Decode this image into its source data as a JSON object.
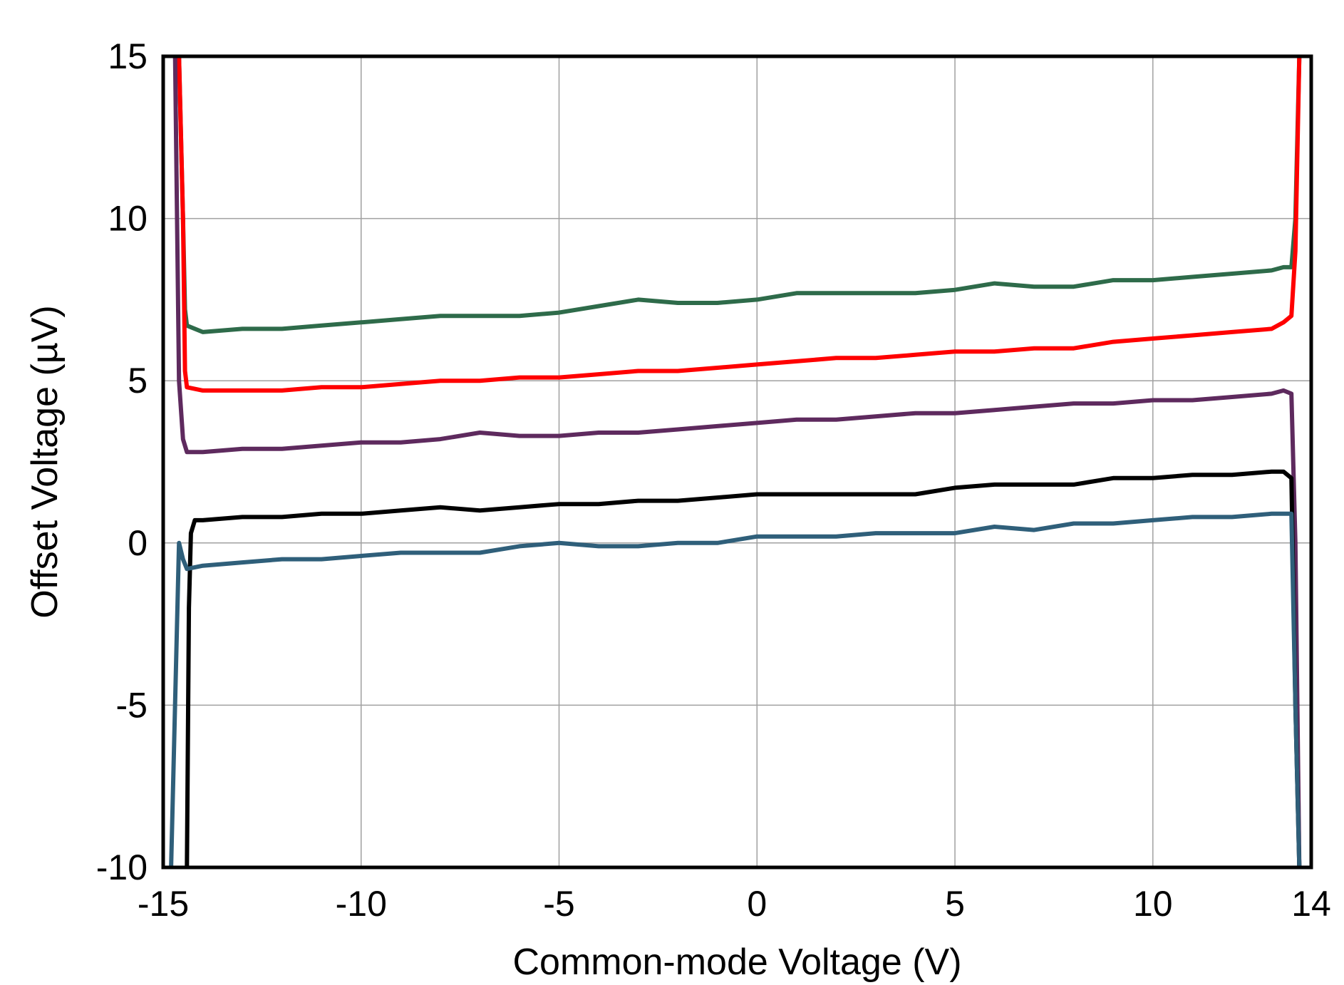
{
  "chart_data": {
    "type": "line",
    "title": "",
    "xlabel": "Common-mode Voltage (V)",
    "ylabel": "Offset Voltage (µV)",
    "xlim": [
      -15,
      14
    ],
    "ylim": [
      -10,
      15
    ],
    "xticks": [
      -15,
      -10,
      -5,
      0,
      5,
      10,
      14
    ],
    "yticks": [
      15,
      10,
      5,
      0,
      -5,
      -10
    ],
    "xtick_labels": [
      "-15",
      "-10",
      "-5",
      "0",
      "5",
      "10",
      "14"
    ],
    "ytick_labels": [
      "15",
      "10",
      "5",
      "0",
      "-5",
      "-10"
    ],
    "grid": true,
    "legend": "none",
    "series": [
      {
        "color": "#2e6b4a",
        "x": [
          -14.6,
          -14.5,
          -14.45,
          -14.4,
          -14,
          -13,
          -12,
          -11,
          -10,
          -9,
          -8,
          -7,
          -6,
          -5,
          -4,
          -3,
          -2,
          -1,
          0,
          1,
          2,
          3,
          4,
          5,
          6,
          7,
          8,
          9,
          10,
          11,
          12,
          13,
          13.3,
          13.5,
          13.6,
          13.7
        ],
        "y": [
          15,
          10,
          7.2,
          6.7,
          6.5,
          6.6,
          6.6,
          6.7,
          6.8,
          6.9,
          7.0,
          7.0,
          7.0,
          7.1,
          7.3,
          7.5,
          7.4,
          7.4,
          7.5,
          7.7,
          7.7,
          7.7,
          7.7,
          7.8,
          8.0,
          7.9,
          7.9,
          8.1,
          8.1,
          8.2,
          8.3,
          8.4,
          8.5,
          8.5,
          10,
          15
        ]
      },
      {
        "color": "#ff0000",
        "x": [
          -14.6,
          -14.5,
          -14.45,
          -14.4,
          -14,
          -13,
          -12,
          -11,
          -10,
          -9,
          -8,
          -7,
          -6,
          -5,
          -4,
          -3,
          -2,
          -1,
          0,
          1,
          2,
          3,
          4,
          5,
          6,
          7,
          8,
          9,
          10,
          11,
          12,
          13,
          13.3,
          13.5,
          13.6,
          13.7
        ],
        "y": [
          15,
          10,
          5.3,
          4.8,
          4.7,
          4.7,
          4.7,
          4.8,
          4.8,
          4.9,
          5.0,
          5.0,
          5.1,
          5.1,
          5.2,
          5.3,
          5.3,
          5.4,
          5.5,
          5.6,
          5.7,
          5.7,
          5.8,
          5.9,
          5.9,
          6.0,
          6.0,
          6.2,
          6.3,
          6.4,
          6.5,
          6.6,
          6.8,
          7.0,
          9,
          15
        ]
      },
      {
        "color": "#5e2a5e",
        "x": [
          -14.7,
          -14.6,
          -14.5,
          -14.4,
          -14,
          -13,
          -12,
          -11,
          -10,
          -9,
          -8,
          -7,
          -6,
          -5,
          -4,
          -3,
          -2,
          -1,
          0,
          1,
          2,
          3,
          4,
          5,
          6,
          7,
          8,
          9,
          10,
          11,
          12,
          13,
          13.3,
          13.5,
          13.6,
          13.7
        ],
        "y": [
          15,
          5,
          3.2,
          2.8,
          2.8,
          2.9,
          2.9,
          3.0,
          3.1,
          3.1,
          3.2,
          3.4,
          3.3,
          3.3,
          3.4,
          3.4,
          3.5,
          3.6,
          3.7,
          3.8,
          3.8,
          3.9,
          4.0,
          4.0,
          4.1,
          4.2,
          4.3,
          4.3,
          4.4,
          4.4,
          4.5,
          4.6,
          4.7,
          4.6,
          0,
          -10
        ]
      },
      {
        "color": "#000000",
        "x": [
          -14.4,
          -14.35,
          -14.3,
          -14.2,
          -14,
          -13,
          -12,
          -11,
          -10,
          -9,
          -8,
          -7,
          -6,
          -5,
          -4,
          -3,
          -2,
          -1,
          0,
          1,
          2,
          3,
          4,
          5,
          6,
          7,
          8,
          9,
          10,
          11,
          12,
          13,
          13.3,
          13.5,
          13.6,
          13.7
        ],
        "y": [
          -10,
          -2,
          0.3,
          0.7,
          0.7,
          0.8,
          0.8,
          0.9,
          0.9,
          1.0,
          1.1,
          1.0,
          1.1,
          1.2,
          1.2,
          1.3,
          1.3,
          1.4,
          1.5,
          1.5,
          1.5,
          1.5,
          1.5,
          1.7,
          1.8,
          1.8,
          1.8,
          2.0,
          2.0,
          2.1,
          2.1,
          2.2,
          2.2,
          2.0,
          -5,
          -10
        ]
      },
      {
        "color": "#2f5f7a",
        "x": [
          -14.8,
          -14.6,
          -14.5,
          -14.4,
          -14,
          -13,
          -12,
          -11,
          -10,
          -9,
          -8,
          -7,
          -6,
          -5,
          -4,
          -3,
          -2,
          -1,
          0,
          1,
          2,
          3,
          4,
          5,
          6,
          7,
          8,
          9,
          10,
          11,
          12,
          13,
          13.3,
          13.5,
          13.6,
          13.7
        ],
        "y": [
          -10,
          0,
          -0.5,
          -0.8,
          -0.7,
          -0.6,
          -0.5,
          -0.5,
          -0.4,
          -0.3,
          -0.3,
          -0.3,
          -0.1,
          0.0,
          -0.1,
          -0.1,
          0.0,
          0.0,
          0.2,
          0.2,
          0.2,
          0.3,
          0.3,
          0.3,
          0.5,
          0.4,
          0.6,
          0.6,
          0.7,
          0.8,
          0.8,
          0.9,
          0.9,
          0.9,
          -5,
          -10
        ]
      }
    ]
  }
}
